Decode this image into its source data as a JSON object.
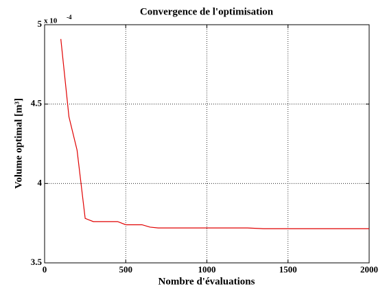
{
  "chart_data": {
    "type": "line",
    "title": "Convergence de l'optimisation",
    "x_label": "Nombre d'évaluations",
    "y_label": "Volume optimal [m³]",
    "y_multiplier": {
      "base": "x 10",
      "exponent": "-4"
    },
    "x": [
      100,
      150,
      200,
      250,
      300,
      450,
      500,
      600,
      650,
      700,
      1250,
      1350,
      2000
    ],
    "series": [
      {
        "name": "Volume optimal",
        "color": "#e00000",
        "values": [
          4.91,
          4.42,
          4.21,
          3.78,
          3.76,
          3.76,
          3.74,
          3.74,
          3.725,
          3.72,
          3.72,
          3.715,
          3.715
        ]
      }
    ],
    "xlim": [
      0,
      2000
    ],
    "xticks": [
      0,
      500,
      1000,
      1500,
      2000
    ],
    "ylim": [
      3.5,
      5
    ],
    "yticks": [
      3.5,
      4,
      4.5,
      5
    ],
    "grid": true
  }
}
